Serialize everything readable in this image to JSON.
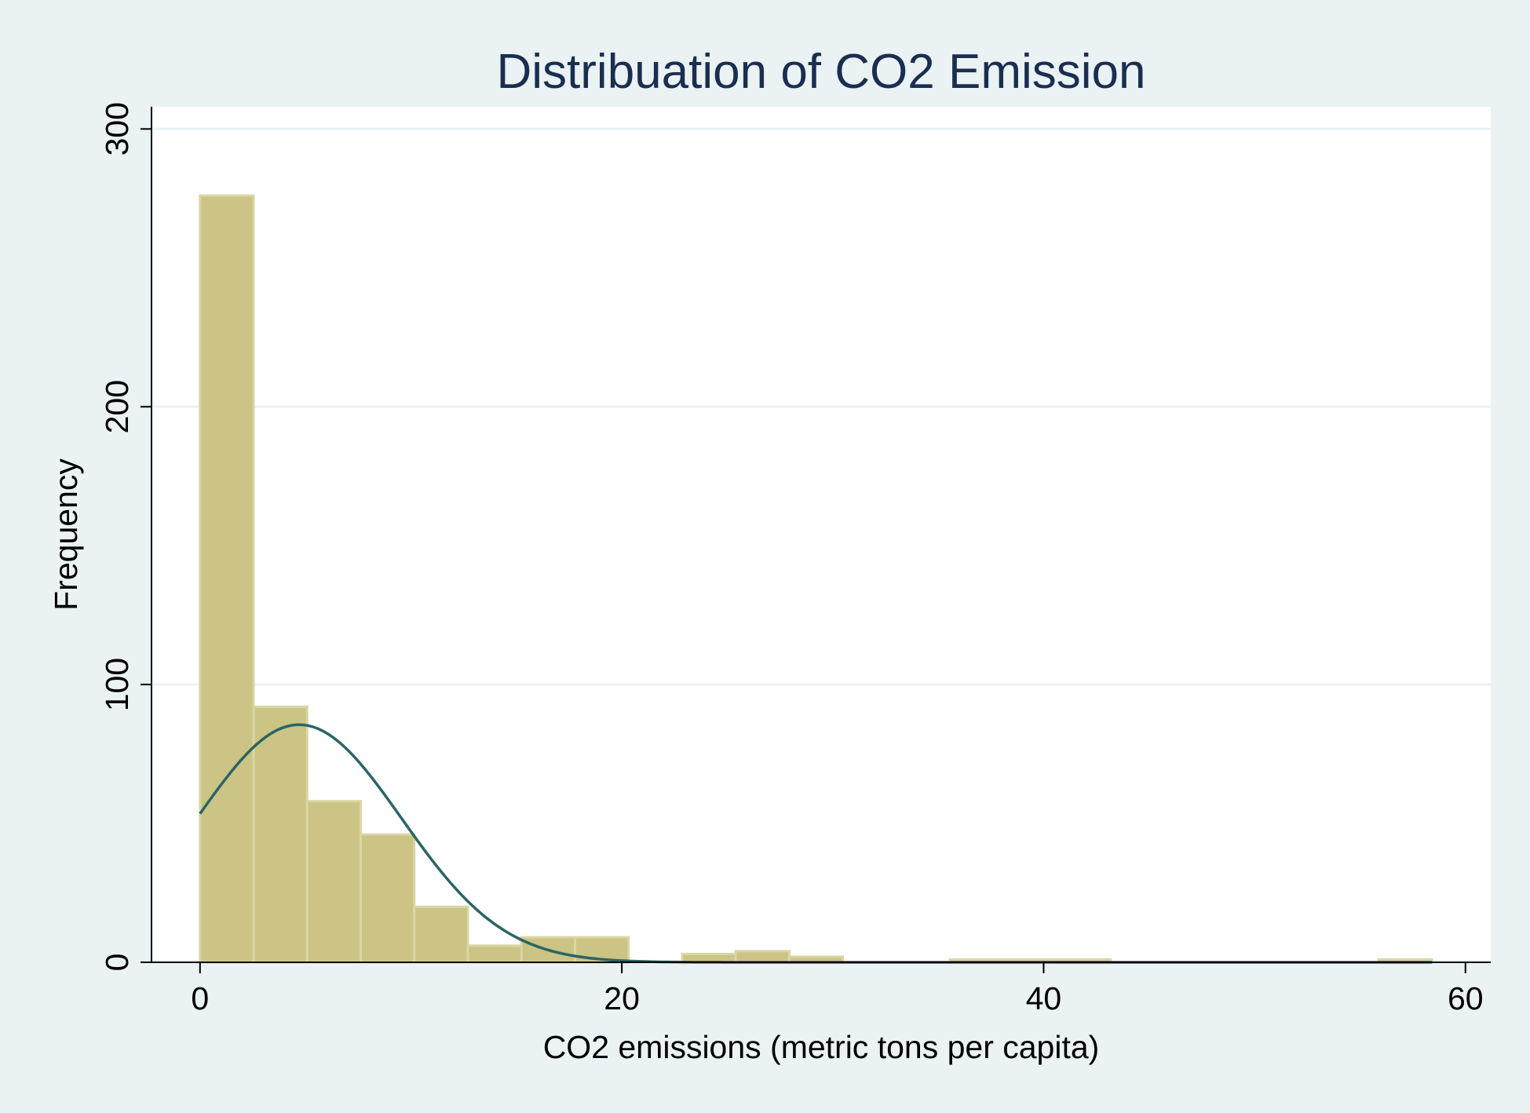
{
  "chart_data": {
    "type": "bar",
    "title": "Distribuation of CO2 Emission",
    "xlabel": "CO2 emissions (metric tons per capita)",
    "ylabel": "Frequency",
    "xlim": [
      -2.3,
      61.2
    ],
    "ylim": [
      0,
      308
    ],
    "xticks": [
      0,
      20,
      40,
      60
    ],
    "xtick_labels": [
      "0",
      "20",
      "40",
      "60"
    ],
    "yticks": [
      0,
      100,
      200,
      300
    ],
    "ytick_labels": [
      "0",
      "100",
      "200",
      "300"
    ],
    "grid": "horizontal",
    "legend": "none",
    "bin_width": 2.54,
    "bins": [
      {
        "start": 0.0,
        "end": 2.54,
        "count": 276
      },
      {
        "start": 2.54,
        "end": 5.08,
        "count": 92
      },
      {
        "start": 5.08,
        "end": 7.62,
        "count": 58
      },
      {
        "start": 7.62,
        "end": 10.16,
        "count": 46
      },
      {
        "start": 10.16,
        "end": 12.7,
        "count": 20
      },
      {
        "start": 12.7,
        "end": 15.24,
        "count": 6
      },
      {
        "start": 15.24,
        "end": 17.78,
        "count": 9
      },
      {
        "start": 17.78,
        "end": 20.32,
        "count": 9
      },
      {
        "start": 22.86,
        "end": 25.4,
        "count": 3
      },
      {
        "start": 25.4,
        "end": 27.94,
        "count": 4
      },
      {
        "start": 27.94,
        "end": 30.48,
        "count": 2
      },
      {
        "start": 35.56,
        "end": 38.1,
        "count": 1
      },
      {
        "start": 38.1,
        "end": 40.64,
        "count": 1
      },
      {
        "start": 40.64,
        "end": 43.18,
        "count": 1
      },
      {
        "start": 55.88,
        "end": 58.42,
        "count": 1
      }
    ],
    "normal_curve": {
      "mean": 4.7,
      "sd": 4.85,
      "scale": 1040,
      "x_range": [
        0,
        58.42
      ]
    },
    "colors": {
      "background": "#eaf2f3",
      "plot_background": "#ffffff",
      "bar_fill": "#cbc484",
      "bar_edge": "#dad6a4",
      "curve": "#2c6464",
      "title": "#1a2e50",
      "grid": "#eaf2f3",
      "axis": "#000000"
    }
  }
}
